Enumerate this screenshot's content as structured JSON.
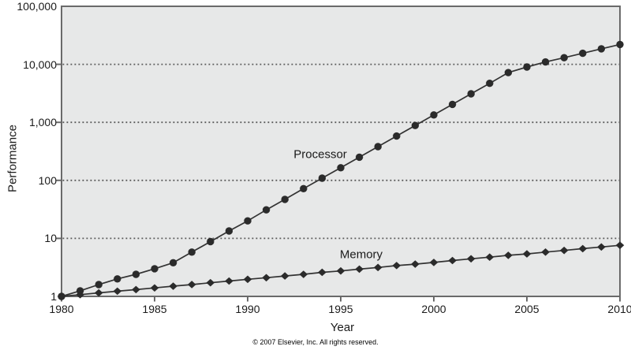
{
  "chart_data": {
    "type": "line",
    "title": "",
    "xlabel": "Year",
    "ylabel": "Performance",
    "x_scale": "linear",
    "y_scale": "log",
    "xlim": [
      1980,
      2010
    ],
    "ylim": [
      1,
      100000
    ],
    "grid": "horizontal-dotted",
    "legend_position": "inline-labels",
    "x": [
      1980,
      1981,
      1982,
      1983,
      1984,
      1985,
      1986,
      1987,
      1988,
      1989,
      1990,
      1991,
      1992,
      1993,
      1994,
      1995,
      1996,
      1997,
      1998,
      1999,
      2000,
      2001,
      2002,
      2003,
      2004,
      2005,
      2006,
      2007,
      2008,
      2009,
      2010
    ],
    "series": [
      {
        "name": "Processor",
        "marker": "circle",
        "values": [
          1,
          1.25,
          1.6,
          2.0,
          2.4,
          3.0,
          3.8,
          5.8,
          8.8,
          13.4,
          20,
          31,
          47,
          72,
          109,
          165,
          251,
          382,
          580,
          882,
          1340,
          2040,
          3100,
          4700,
          7200,
          9000,
          11000,
          13000,
          15500,
          18500,
          22000
        ]
      },
      {
        "name": "Memory",
        "marker": "diamond",
        "values": [
          1,
          1.07,
          1.15,
          1.23,
          1.31,
          1.4,
          1.5,
          1.6,
          1.72,
          1.84,
          1.97,
          2.1,
          2.25,
          2.4,
          2.6,
          2.75,
          2.95,
          3.15,
          3.4,
          3.6,
          3.85,
          4.15,
          4.45,
          4.75,
          5.1,
          5.4,
          5.8,
          6.2,
          6.65,
          7.1,
          7.6
        ]
      }
    ],
    "x_tick_values": [
      1980,
      1985,
      1990,
      1995,
      2000,
      2005,
      2010
    ],
    "x_tick_labels": [
      "1980",
      "1985",
      "1990",
      "1995",
      "2000",
      "2005",
      "2010"
    ],
    "y_tick_values": [
      1,
      10,
      100,
      1000,
      10000,
      100000
    ],
    "y_tick_labels": [
      "1",
      "10",
      "100",
      "1,000",
      "10,000",
      "100,000"
    ],
    "series_label_positions": [
      {
        "x": 1993.9,
        "y": 280
      },
      {
        "x": 1996.1,
        "y": 5.2
      }
    ],
    "colors": {
      "plot_bg": "#e7e8e8",
      "frame": "#6a6a6a",
      "grid": "#555555",
      "line": "#333333",
      "marker": "#2b2b2b",
      "text": "#1a1a1a"
    }
  },
  "footer": {
    "copyright": "© 2007 Elsevier, Inc. All rights reserved."
  }
}
